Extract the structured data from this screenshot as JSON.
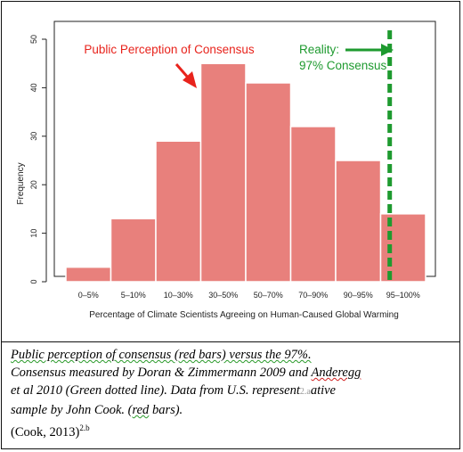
{
  "chart_data": {
    "type": "bar",
    "categories": [
      "0–5%",
      "5–10%",
      "10–30%",
      "30–50%",
      "50–70%",
      "70–90%",
      "90–95%",
      "95–100%"
    ],
    "values": [
      3,
      13,
      29,
      45,
      41,
      32,
      25,
      14
    ],
    "xlabel": "Percentage of Climate Scientists Agreeing on Human-Caused Global Warming",
    "ylabel": "Frequency",
    "ylim": [
      0,
      50
    ],
    "yticks": [
      0,
      10,
      20,
      30,
      40,
      50
    ],
    "grid": false,
    "bar_color": "#e8807c",
    "bar_edge_color": "#ffffff",
    "annotations": {
      "perception_label": "Public Perception of Consensus",
      "perception_color": "#e8231c",
      "reality_line1": "Reality:",
      "reality_line2": "97% Consensus",
      "reality_color": "#1e9a2f",
      "reality_x_percent": 97
    }
  },
  "caption": {
    "line1_a": "Public perception of consensus (red bars) versus the 97%.",
    "line2_a": "Consensus measured by Doran & Zimmermann 2009 and ",
    "line2_b": "Anderegg",
    "line3_a": "et al 2010 (Green dotted line). Data from U.S. represent",
    "line3_overlay": "2.a",
    "line3_b": "ative",
    "line4_a": "sample by John Cook. (",
    "line4_b": "red",
    "line4_c": " bars).",
    "line5_a": "(Cook, 2013)",
    "line5_sup": "2.b"
  }
}
